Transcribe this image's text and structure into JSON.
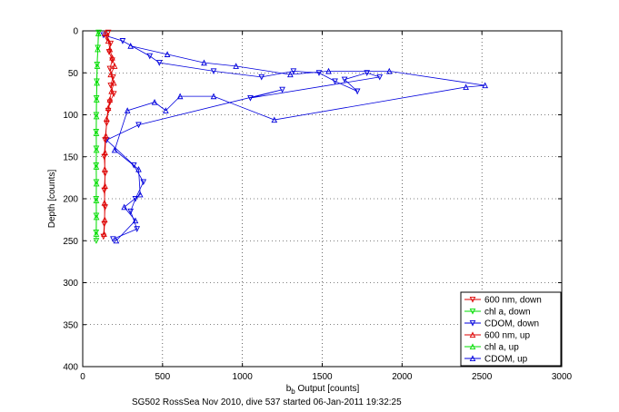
{
  "caption": "SG502 RossSea Nov 2010, dive 537 started 06-Jan-2011 19:32:25",
  "chart_data": {
    "type": "scatter",
    "xlabel": "b_b Output [counts]",
    "xlabel_main": "b",
    "xlabel_sub": "b",
    "xlabel_rest": " Output [counts]",
    "ylabel": "Depth [counts]",
    "xlim": [
      0,
      3000
    ],
    "ylim": [
      0,
      400
    ],
    "y_reversed": true,
    "grid": true,
    "xticks": [
      0,
      500,
      1000,
      1500,
      2000,
      2500,
      3000
    ],
    "yticks": [
      0,
      50,
      100,
      150,
      200,
      250,
      300,
      350,
      400
    ],
    "legend_position": "bottom-right",
    "series": [
      {
        "name": "600 nm, down",
        "color": "#dd0000",
        "marker": "down",
        "values": [
          [
            160,
            2
          ],
          [
            150,
            8
          ],
          [
            175,
            15
          ],
          [
            165,
            25
          ],
          [
            185,
            35
          ],
          [
            170,
            45
          ],
          [
            190,
            55
          ],
          [
            175,
            65
          ],
          [
            195,
            75
          ],
          [
            170,
            85
          ],
          [
            160,
            95
          ],
          [
            150,
            110
          ],
          [
            140,
            130
          ],
          [
            135,
            150
          ],
          [
            140,
            170
          ],
          [
            135,
            190
          ],
          [
            140,
            210
          ],
          [
            135,
            230
          ],
          [
            130,
            245
          ]
        ]
      },
      {
        "name": "chl a, down",
        "color": "#00dd00",
        "marker": "down",
        "values": [
          [
            100,
            2
          ],
          [
            95,
            20
          ],
          [
            90,
            40
          ],
          [
            88,
            60
          ],
          [
            86,
            80
          ],
          [
            85,
            100
          ],
          [
            84,
            120
          ],
          [
            85,
            140
          ],
          [
            84,
            160
          ],
          [
            85,
            180
          ],
          [
            84,
            200
          ],
          [
            85,
            220
          ],
          [
            84,
            240
          ],
          [
            85,
            250
          ]
        ]
      },
      {
        "name": "CDOM, down",
        "color": "#0000dd",
        "marker": "down",
        "values": [
          [
            130,
            5
          ],
          [
            250,
            12
          ],
          [
            420,
            30
          ],
          [
            480,
            38
          ],
          [
            820,
            48
          ],
          [
            1120,
            55
          ],
          [
            1320,
            48
          ],
          [
            1480,
            50
          ],
          [
            1580,
            60
          ],
          [
            1720,
            72
          ],
          [
            1640,
            58
          ],
          [
            1780,
            50
          ],
          [
            1860,
            55
          ],
          [
            1050,
            80
          ],
          [
            1250,
            70
          ],
          [
            350,
            112
          ],
          [
            150,
            130
          ],
          [
            320,
            160
          ],
          [
            380,
            180
          ],
          [
            330,
            200
          ],
          [
            300,
            215
          ],
          [
            340,
            236
          ],
          [
            190,
            248
          ]
        ]
      },
      {
        "name": "600 nm, up",
        "color": "#dd0000",
        "marker": "up",
        "values": [
          [
            140,
            3
          ],
          [
            160,
            12
          ],
          [
            170,
            22
          ],
          [
            185,
            32
          ],
          [
            200,
            42
          ],
          [
            175,
            52
          ],
          [
            195,
            62
          ],
          [
            180,
            72
          ],
          [
            170,
            82
          ],
          [
            160,
            92
          ],
          [
            150,
            105
          ],
          [
            145,
            125
          ],
          [
            140,
            145
          ],
          [
            138,
            165
          ],
          [
            140,
            185
          ],
          [
            136,
            205
          ],
          [
            138,
            225
          ],
          [
            134,
            242
          ]
        ]
      },
      {
        "name": "chl a, up",
        "color": "#00dd00",
        "marker": "up",
        "values": [
          [
            98,
            3
          ],
          [
            94,
            22
          ],
          [
            91,
            42
          ],
          [
            89,
            62
          ],
          [
            87,
            82
          ],
          [
            86,
            102
          ],
          [
            85,
            122
          ],
          [
            86,
            142
          ],
          [
            85,
            162
          ],
          [
            86,
            182
          ],
          [
            85,
            202
          ],
          [
            86,
            222
          ],
          [
            85,
            242
          ]
        ]
      },
      {
        "name": "CDOM, up",
        "color": "#0000dd",
        "marker": "up",
        "values": [
          [
            300,
            18
          ],
          [
            530,
            28
          ],
          [
            760,
            38
          ],
          [
            960,
            42
          ],
          [
            1300,
            52
          ],
          [
            1540,
            48
          ],
          [
            1920,
            48
          ],
          [
            2520,
            65
          ],
          [
            2400,
            67
          ],
          [
            1200,
            106
          ],
          [
            820,
            78
          ],
          [
            610,
            78
          ],
          [
            520,
            95
          ],
          [
            450,
            85
          ],
          [
            280,
            95
          ],
          [
            200,
            142
          ],
          [
            350,
            165
          ],
          [
            360,
            195
          ],
          [
            260,
            210
          ],
          [
            330,
            226
          ],
          [
            210,
            250
          ]
        ]
      }
    ]
  }
}
